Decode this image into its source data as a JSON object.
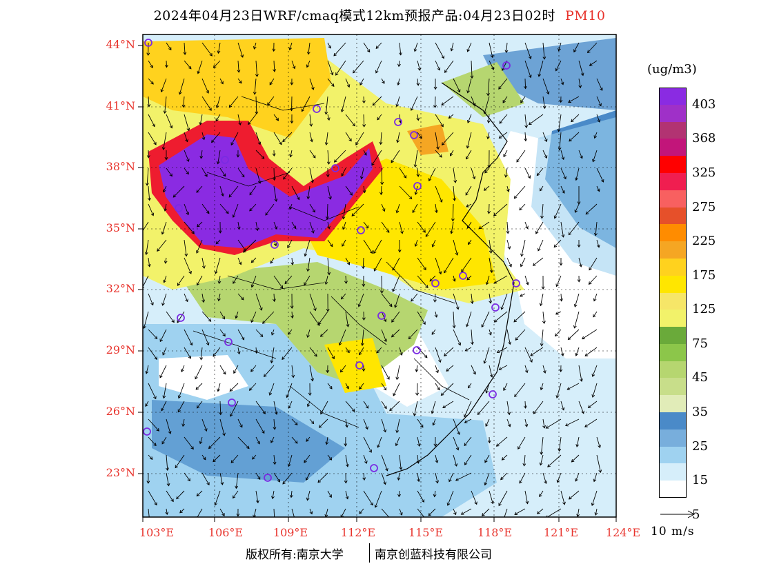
{
  "title": {
    "text": "2024年04月23日WRF/cmaq模式12km预报产品:04月23日02时",
    "species": "PM10"
  },
  "map": {
    "lat_labels": [
      "44°N",
      "41°N",
      "38°N",
      "35°N",
      "32°N",
      "29°N",
      "26°N",
      "23°N"
    ],
    "lon_labels": [
      "103°E",
      "106°E",
      "109°E",
      "112°E",
      "115°E",
      "118°E",
      "121°E",
      "124°E"
    ],
    "colors": {
      "purple": "#8a2be2",
      "red": "#ee1c2f",
      "orange": "#f5a623",
      "yellow": "#ffe600",
      "lightyellow": "#eef08a",
      "green": "#6aaa3a",
      "lightgreen": "#b6d670",
      "blue": "#4a8ac8",
      "lightblue": "#9fd2f0",
      "paleblue": "#d6eefa",
      "land_outline": "#000000",
      "city_marker": "#7a2be2"
    }
  },
  "legend": {
    "unit": "(ug/m3)",
    "labels": [
      "403",
      "368",
      "325",
      "275",
      "225",
      "175",
      "125",
      "75",
      "45",
      "35",
      "25",
      "15",
      "5"
    ],
    "colors": [
      "#8a2be2",
      "#9f30c8",
      "#b23372",
      "#c2157a",
      "#ff0000",
      "#f01e50",
      "#f86060",
      "#e6502a",
      "#ff8c00",
      "#f5a623",
      "#ffd21e",
      "#ffe600",
      "#f6e668",
      "#f2f26a",
      "#6aaa3a",
      "#8cc64a",
      "#b6d670",
      "#c8de8a",
      "#e1ecb8",
      "#4a8ac8",
      "#78aedc",
      "#9fd2f0",
      "#d6eefa",
      "#ffffff"
    ],
    "wind_scale_label": "10 m/s"
  },
  "footer": {
    "copyright": "版权所有:南京大学",
    "company": "南京创蓝科技有限公司"
  }
}
